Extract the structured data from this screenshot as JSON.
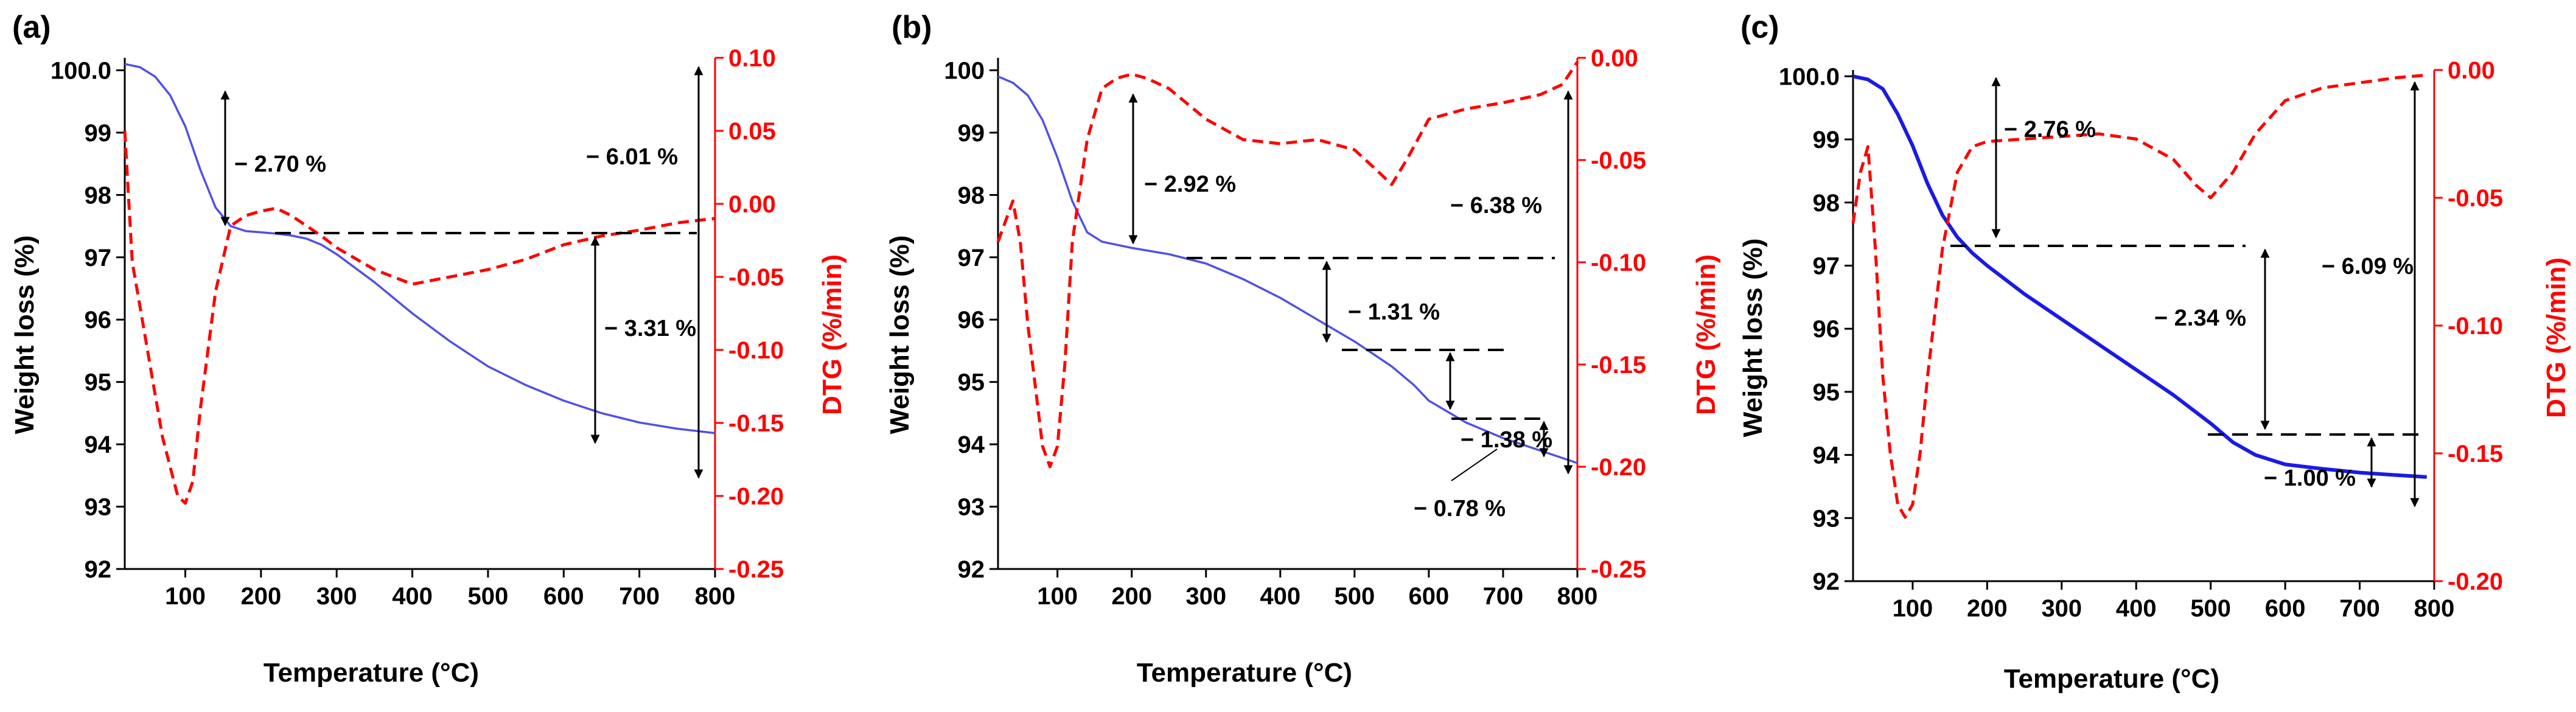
{
  "chart_data": [
    {
      "type": "line",
      "panel_label": "(a)",
      "xlabel": "Temperature (°C)",
      "ylabel_left": "Weight loss (%)",
      "ylabel_right": "DTG (%/min)",
      "xlim": [
        20,
        800
      ],
      "ylim_left": [
        92,
        100.2
      ],
      "ylim_right": [
        -0.25,
        0.1
      ],
      "xticks": [
        100,
        200,
        300,
        400,
        500,
        600,
        700,
        800
      ],
      "xtick_labels": [
        "100",
        "200",
        "300",
        "400",
        "500",
        "600",
        "700",
        "800"
      ],
      "yticks_left": [
        92,
        93,
        94,
        95,
        96,
        97,
        98,
        99,
        100
      ],
      "ytick_labels_left": [
        "92",
        "93",
        "94",
        "95",
        "96",
        "97",
        "98",
        "99",
        "100.0"
      ],
      "yticks_right": [
        -0.25,
        -0.2,
        -0.15,
        -0.1,
        -0.05,
        0.0,
        0.05,
        0.1
      ],
      "ytick_labels_right": [
        "-0.25",
        "-0.20",
        "-0.15",
        "-0.10",
        "-0.05",
        "0.00",
        "0.05",
        "0.10"
      ],
      "colors": {
        "tg": "#5050e6",
        "dtg": "#ff0000",
        "annot": "#000000"
      },
      "series": [
        {
          "name": "TG",
          "axis": "left",
          "style": "solid",
          "x": [
            20,
            40,
            60,
            80,
            100,
            120,
            140,
            160,
            180,
            200,
            220,
            240,
            260,
            280,
            300,
            350,
            400,
            450,
            500,
            550,
            600,
            650,
            700,
            750,
            800
          ],
          "y": [
            100.1,
            100.05,
            99.9,
            99.6,
            99.1,
            98.4,
            97.8,
            97.5,
            97.42,
            97.4,
            97.38,
            97.35,
            97.3,
            97.2,
            97.05,
            96.6,
            96.1,
            95.65,
            95.25,
            94.95,
            94.7,
            94.5,
            94.35,
            94.25,
            94.18
          ]
        },
        {
          "name": "DTG",
          "axis": "right",
          "style": "dashed",
          "x": [
            20,
            30,
            40,
            50,
            60,
            70,
            80,
            90,
            100,
            110,
            120,
            140,
            160,
            180,
            200,
            220,
            240,
            260,
            280,
            300,
            350,
            400,
            450,
            500,
            550,
            600,
            650,
            700,
            750,
            800
          ],
          "y": [
            0.05,
            -0.04,
            -0.07,
            -0.1,
            -0.13,
            -0.16,
            -0.18,
            -0.2,
            -0.205,
            -0.19,
            -0.14,
            -0.06,
            -0.015,
            -0.008,
            -0.005,
            -0.003,
            -0.008,
            -0.015,
            -0.022,
            -0.03,
            -0.045,
            -0.055,
            -0.05,
            -0.045,
            -0.038,
            -0.028,
            -0.022,
            -0.018,
            -0.013,
            -0.01
          ]
        }
      ],
      "annotations": [
        {
          "text": "− 2.70 %"
        },
        {
          "text": "− 6.01 %"
        },
        {
          "text": "− 3.31 %"
        }
      ]
    },
    {
      "type": "line",
      "panel_label": "(b)",
      "xlabel": "Temperature (°C)",
      "ylabel_left": "Weight loss (%)",
      "ylabel_right": "DTG (%/min)",
      "xlim": [
        20,
        800
      ],
      "ylim_left": [
        92,
        100.2
      ],
      "ylim_right": [
        -0.25,
        0.0
      ],
      "xticks": [
        100,
        200,
        300,
        400,
        500,
        600,
        700,
        800
      ],
      "xtick_labels": [
        "100",
        "200",
        "300",
        "400",
        "500",
        "600",
        "700",
        "800"
      ],
      "yticks_left": [
        92,
        93,
        94,
        95,
        96,
        97,
        98,
        99,
        100
      ],
      "ytick_labels_left": [
        "92",
        "93",
        "94",
        "95",
        "96",
        "97",
        "98",
        "99",
        "100"
      ],
      "yticks_right": [
        -0.25,
        -0.2,
        -0.15,
        -0.1,
        -0.05,
        0.0
      ],
      "ytick_labels_right": [
        "-0.25",
        "-0.20",
        "-0.15",
        "-0.10",
        "-0.05",
        "0.00"
      ],
      "colors": {
        "tg": "#5050e6",
        "dtg": "#ff0000",
        "annot": "#000000"
      },
      "series": [
        {
          "name": "TG",
          "axis": "left",
          "style": "solid",
          "x": [
            20,
            40,
            60,
            80,
            100,
            120,
            140,
            160,
            180,
            200,
            250,
            300,
            350,
            400,
            450,
            500,
            550,
            580,
            600,
            650,
            700,
            750,
            800
          ],
          "y": [
            99.9,
            99.8,
            99.6,
            99.2,
            98.6,
            97.9,
            97.4,
            97.25,
            97.2,
            97.15,
            97.05,
            96.9,
            96.65,
            96.35,
            96.0,
            95.65,
            95.25,
            94.95,
            94.7,
            94.35,
            94.1,
            93.9,
            93.7
          ]
        },
        {
          "name": "DTG",
          "axis": "right",
          "style": "dashed",
          "x": [
            20,
            30,
            40,
            50,
            60,
            70,
            80,
            90,
            100,
            110,
            120,
            140,
            160,
            180,
            200,
            220,
            250,
            300,
            350,
            400,
            450,
            500,
            530,
            550,
            570,
            600,
            650,
            700,
            750,
            780,
            800
          ],
          "y": [
            -0.09,
            -0.08,
            -0.07,
            -0.09,
            -0.13,
            -0.16,
            -0.19,
            -0.2,
            -0.19,
            -0.15,
            -0.09,
            -0.04,
            -0.015,
            -0.01,
            -0.008,
            -0.01,
            -0.015,
            -0.03,
            -0.04,
            -0.042,
            -0.04,
            -0.045,
            -0.055,
            -0.062,
            -0.05,
            -0.03,
            -0.025,
            -0.022,
            -0.018,
            -0.013,
            -0.002
          ]
        }
      ],
      "annotations": [
        {
          "text": "− 2.92 %"
        },
        {
          "text": "− 6.38 %"
        },
        {
          "text": "− 1.31 %"
        },
        {
          "text": "− 1.38 %"
        },
        {
          "text": "− 0.78 %"
        }
      ]
    },
    {
      "type": "line",
      "panel_label": "(c)",
      "xlabel": "Temperature (°C)",
      "ylabel_left": "Weight loss (%)",
      "ylabel_right": "DTG (%/min)",
      "xlim": [
        20,
        800
      ],
      "ylim_left": [
        92,
        100.1
      ],
      "ylim_right": [
        -0.2,
        0.0
      ],
      "xticks": [
        100,
        200,
        300,
        400,
        500,
        600,
        700,
        800
      ],
      "xtick_labels": [
        "100",
        "200",
        "300",
        "400",
        "500",
        "600",
        "700",
        "800"
      ],
      "yticks_left": [
        92,
        93,
        94,
        95,
        96,
        97,
        98,
        99,
        100
      ],
      "ytick_labels_left": [
        "92",
        "93",
        "94",
        "95",
        "96",
        "97",
        "98",
        "99",
        "100.0"
      ],
      "yticks_right": [
        -0.2,
        -0.15,
        -0.1,
        -0.05,
        0.0
      ],
      "ytick_labels_right": [
        "-0.20",
        "-0.15",
        "-0.10",
        "-0.05",
        "0.00"
      ],
      "colors": {
        "tg": "#1a1ae6",
        "dtg": "#ff0000",
        "annot": "#000000"
      },
      "series": [
        {
          "name": "TG",
          "axis": "left",
          "style": "solid",
          "x": [
            20,
            40,
            60,
            80,
            100,
            120,
            140,
            160,
            180,
            200,
            250,
            300,
            350,
            400,
            450,
            500,
            530,
            560,
            600,
            650,
            700,
            750,
            790
          ],
          "y": [
            100.0,
            99.95,
            99.8,
            99.4,
            98.9,
            98.3,
            97.8,
            97.45,
            97.2,
            97.0,
            96.55,
            96.15,
            95.75,
            95.35,
            94.95,
            94.5,
            94.2,
            94.0,
            93.85,
            93.78,
            93.72,
            93.68,
            93.65
          ]
        },
        {
          "name": "DTG",
          "axis": "right",
          "style": "dashed",
          "x": [
            20,
            30,
            40,
            50,
            60,
            70,
            80,
            90,
            100,
            110,
            120,
            140,
            160,
            180,
            200,
            250,
            300,
            350,
            400,
            450,
            480,
            500,
            530,
            560,
            600,
            650,
            700,
            750,
            790
          ],
          "y": [
            -0.06,
            -0.04,
            -0.03,
            -0.07,
            -0.12,
            -0.15,
            -0.17,
            -0.175,
            -0.17,
            -0.15,
            -0.12,
            -0.07,
            -0.04,
            -0.03,
            -0.028,
            -0.027,
            -0.026,
            -0.025,
            -0.027,
            -0.035,
            -0.045,
            -0.05,
            -0.04,
            -0.025,
            -0.012,
            -0.007,
            -0.005,
            -0.003,
            -0.002
          ]
        }
      ],
      "annotations": [
        {
          "text": "− 2.76 %"
        },
        {
          "text": "− 6.09 %"
        },
        {
          "text": "− 2.34 %"
        },
        {
          "text": "− 1.00 %"
        }
      ]
    }
  ]
}
